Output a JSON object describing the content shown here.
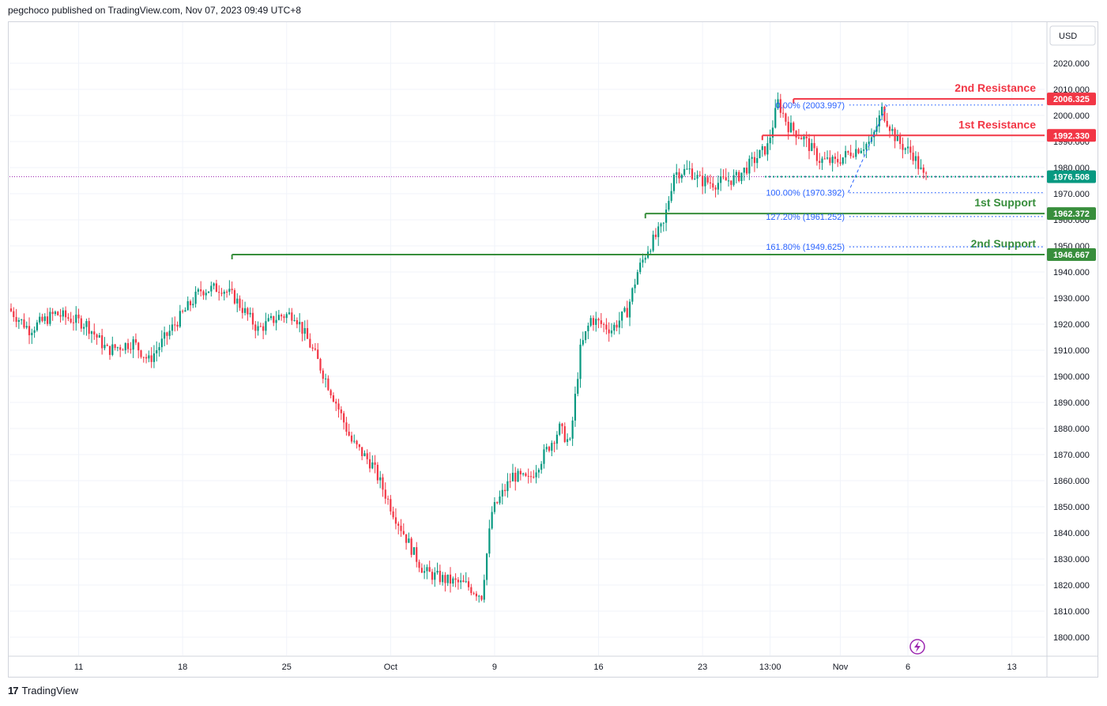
{
  "header": {
    "text": "pegchoco published on TradingView.com, Nov 07, 2023 09:49 UTC+8"
  },
  "footer": {
    "logo_glyph": "17",
    "brand": "TradingView"
  },
  "currency_button": "USD",
  "colors": {
    "up": "#089981",
    "down": "#f23645",
    "resistance": "#f23645",
    "support": "#388e3c",
    "fib": "#2962ff",
    "current": "#089981",
    "price_line": "#9c27b0"
  },
  "chart_data": {
    "type": "candlestick",
    "title": "",
    "ylim": [
      1795,
      2031
    ],
    "y_ticks": [
      2020,
      2010,
      2000,
      1990,
      1980,
      1970,
      1960,
      1950,
      1940,
      1930,
      1920,
      1910,
      1900,
      1890,
      1880,
      1870,
      1860,
      1850,
      1840,
      1830,
      1820,
      1810,
      1800
    ],
    "y_tick_labels": [
      "2020.000",
      "2010.000",
      "2000.000",
      "1990.000",
      "1980.000",
      "1970.000",
      "1960.000",
      "1950.000",
      "1940.000",
      "1930.000",
      "1920.000",
      "1910.000",
      "1900.000",
      "1890.000",
      "1880.000",
      "1870.000",
      "1860.000",
      "1850.000",
      "1840.000",
      "1830.000",
      "1820.000",
      "1810.000",
      "1800.000"
    ],
    "x_ticks": [
      {
        "bar": 26,
        "label": "11"
      },
      {
        "bar": 66,
        "label": "18"
      },
      {
        "bar": 106,
        "label": "25"
      },
      {
        "bar": 146,
        "label": "Oct"
      },
      {
        "bar": 186,
        "label": "9"
      },
      {
        "bar": 226,
        "label": "16"
      },
      {
        "bar": 266,
        "label": "23"
      },
      {
        "bar": 292,
        "label": "13:00"
      },
      {
        "bar": 319,
        "label": "Nov"
      },
      {
        "bar": 345,
        "label": "6"
      },
      {
        "bar": 385,
        "label": "13"
      }
    ],
    "anchors": [
      [
        0,
        1926
      ],
      [
        8,
        1918
      ],
      [
        18,
        1924
      ],
      [
        30,
        1920
      ],
      [
        38,
        1910
      ],
      [
        48,
        1913
      ],
      [
        54,
        1906
      ],
      [
        64,
        1920
      ],
      [
        74,
        1933
      ],
      [
        82,
        1934
      ],
      [
        87,
        1930
      ],
      [
        96,
        1918
      ],
      [
        104,
        1923
      ],
      [
        110,
        1924
      ],
      [
        118,
        1908
      ],
      [
        126,
        1890
      ],
      [
        132,
        1875
      ],
      [
        140,
        1866
      ],
      [
        148,
        1848
      ],
      [
        156,
        1832
      ],
      [
        160,
        1825
      ],
      [
        168,
        1822
      ],
      [
        176,
        1820
      ],
      [
        182,
        1816
      ],
      [
        186,
        1848
      ],
      [
        194,
        1862
      ],
      [
        200,
        1860
      ],
      [
        206,
        1870
      ],
      [
        212,
        1880
      ],
      [
        216,
        1874
      ],
      [
        220,
        1910
      ],
      [
        224,
        1922
      ],
      [
        232,
        1918
      ],
      [
        238,
        1925
      ],
      [
        242,
        1940
      ],
      [
        246,
        1949
      ],
      [
        252,
        1958
      ],
      [
        256,
        1978
      ],
      [
        262,
        1979
      ],
      [
        266,
        1975
      ],
      [
        272,
        1974
      ],
      [
        280,
        1976
      ],
      [
        286,
        1982
      ],
      [
        292,
        1988
      ],
      [
        296,
        2005
      ],
      [
        300,
        1996
      ],
      [
        306,
        1991
      ],
      [
        312,
        1983
      ],
      [
        318,
        1982
      ],
      [
        324,
        1986
      ],
      [
        332,
        1990
      ],
      [
        336,
        2002
      ],
      [
        342,
        1990
      ],
      [
        348,
        1985
      ],
      [
        352,
        1976.5
      ]
    ],
    "bar_count": 353,
    "last_price": 1976.508,
    "levels": [
      {
        "name": "2nd Resistance",
        "price": 2006.325,
        "label": "2006.325",
        "kind": "resistance",
        "start_bar": 301
      },
      {
        "name": "1st Resistance",
        "price": 1992.33,
        "label": "1992.330",
        "kind": "resistance",
        "start_bar": 289
      },
      {
        "name": "1st Support",
        "price": 1962.372,
        "label": "1962.372",
        "kind": "support",
        "start_bar": 244
      },
      {
        "name": "2nd Support",
        "price": 1946.667,
        "label": "1946.667",
        "kind": "support",
        "start_bar": 85
      }
    ],
    "fib_levels": [
      {
        "label": "0.00% (2003.997)",
        "price": 2003.997
      },
      {
        "label": "100.00% (1970.392)",
        "price": 1970.392
      },
      {
        "label": "127.20% (1961.252)",
        "price": 1961.252
      },
      {
        "label": "161.80% (1949.625)",
        "price": 1949.625
      }
    ],
    "fib_anchor_bars": [
      322,
      337
    ]
  }
}
